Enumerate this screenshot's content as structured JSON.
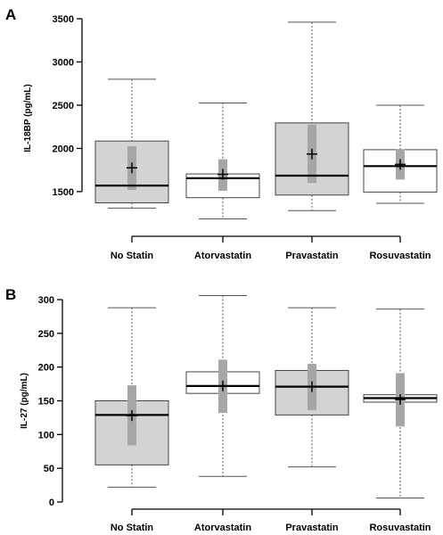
{
  "chart_data": [
    {
      "type": "boxplot",
      "panel_label": "A",
      "ylabel": "IL-18BP (pg/mL)",
      "ylim": [
        1200,
        3500
      ],
      "yticks": [
        1500,
        2000,
        2500,
        3000,
        3500
      ],
      "categories": [
        "No Statin",
        "Atorvastatin",
        "Pravastatin",
        "Rosuvastatin"
      ],
      "boxes": [
        {
          "min": 1310,
          "q1": 1370,
          "median": 1570,
          "q3": 2085,
          "max": 2800,
          "mean": 1775,
          "ci_low": 1520,
          "ci_high": 2025,
          "fill": "#d3d3d3"
        },
        {
          "min": 1185,
          "q1": 1430,
          "median": 1655,
          "q3": 1705,
          "max": 2525,
          "mean": 1700,
          "ci_low": 1510,
          "ci_high": 1875,
          "fill": "#ffffff"
        },
        {
          "min": 1280,
          "q1": 1460,
          "median": 1685,
          "q3": 2295,
          "max": 3460,
          "mean": 1935,
          "ci_low": 1600,
          "ci_high": 2275,
          "fill": "#d3d3d3"
        },
        {
          "min": 1365,
          "q1": 1495,
          "median": 1795,
          "q3": 1985,
          "max": 2500,
          "mean": 1815,
          "ci_low": 1640,
          "ci_high": 1990,
          "fill": "#ffffff"
        }
      ]
    },
    {
      "type": "boxplot",
      "panel_label": "B",
      "ylabel": "IL-27 (pg/mL)",
      "ylim": [
        0,
        300
      ],
      "yticks": [
        0,
        50,
        100,
        150,
        200,
        250,
        300
      ],
      "categories": [
        "No Statin",
        "Atorvastatin",
        "Pravastatin",
        "Rosuvastatin"
      ],
      "boxes": [
        {
          "min": 22,
          "q1": 55,
          "median": 129,
          "q3": 150,
          "max": 288,
          "mean": 128,
          "ci_low": 84,
          "ci_high": 173,
          "fill": "#d3d3d3"
        },
        {
          "min": 38,
          "q1": 161,
          "median": 172,
          "q3": 193,
          "max": 306,
          "mean": 172,
          "ci_low": 132,
          "ci_high": 211,
          "fill": "#ffffff"
        },
        {
          "min": 52,
          "q1": 129,
          "median": 171,
          "q3": 195,
          "max": 288,
          "mean": 171,
          "ci_low": 136,
          "ci_high": 205,
          "fill": "#d3d3d3"
        },
        {
          "min": 6,
          "q1": 148,
          "median": 154,
          "q3": 159,
          "max": 286,
          "mean": 152,
          "ci_low": 112,
          "ci_high": 191,
          "fill": "#ffffff"
        }
      ]
    }
  ]
}
